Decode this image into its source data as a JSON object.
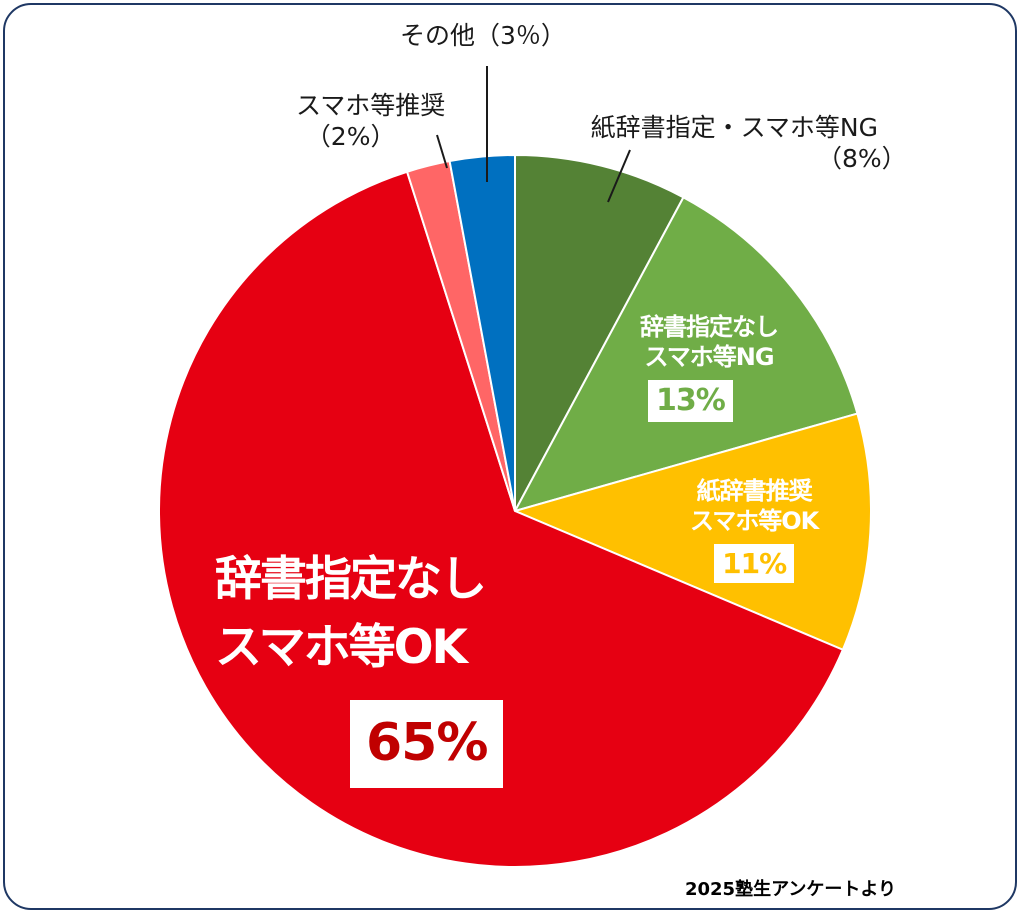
{
  "chart_data": {
    "type": "pie",
    "slices": [
      {
        "label_lines": [
          "紙辞書指定・スマホ等NG",
          "（8%）"
        ],
        "value": 8,
        "value_text": "",
        "color": "#548235"
      },
      {
        "label_lines": [
          "辞書指定なし",
          "スマホ等NG"
        ],
        "value": 13,
        "value_text": "13%",
        "color": "#70ad47"
      },
      {
        "label_lines": [
          "紙辞書推奨",
          "スマホ等OK"
        ],
        "value": 11,
        "value_text": "11%",
        "color": "#ffc000"
      },
      {
        "label_lines": [
          "辞書指定なし",
          "スマホ等OK"
        ],
        "value": 65,
        "value_text": "65%",
        "color": "#e60012"
      },
      {
        "label_lines": [
          "スマホ等推奨",
          "（2%）"
        ],
        "value": 2,
        "value_text": "",
        "color": "#ff6666"
      },
      {
        "label_lines": [
          "その他（3％）"
        ],
        "value": 3,
        "value_text": "",
        "color": "#0070c0"
      }
    ],
    "start": "top",
    "direction": "clockwise"
  },
  "footer": {
    "source": "2025塾生アンケートより"
  }
}
